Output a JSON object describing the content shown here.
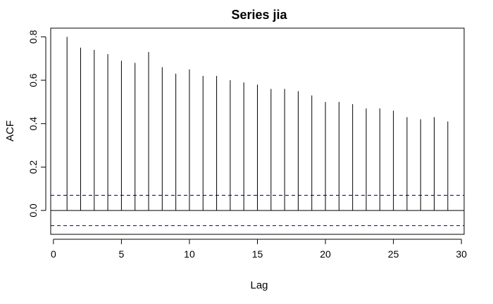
{
  "chart_data": {
    "type": "bar",
    "title": "Series jia",
    "xlabel": "Lag",
    "ylabel": "ACF",
    "xlim": [
      -0.2,
      30.2
    ],
    "ylim": [
      -0.11,
      0.84
    ],
    "x_ticks": [
      0,
      5,
      10,
      15,
      20,
      25,
      30
    ],
    "y_ticks": [
      0.0,
      0.2,
      0.4,
      0.6,
      0.8
    ],
    "x_tick_labels": [
      "0",
      "5",
      "10",
      "15",
      "20",
      "25",
      "30"
    ],
    "y_tick_labels": [
      "0.0",
      "0.2",
      "0.4",
      "0.6",
      "0.8"
    ],
    "lags": [
      1,
      2,
      3,
      4,
      5,
      6,
      7,
      8,
      9,
      10,
      11,
      12,
      13,
      14,
      15,
      16,
      17,
      18,
      19,
      20,
      21,
      22,
      23,
      24,
      25,
      26,
      27,
      28,
      29
    ],
    "values": [
      0.8,
      0.75,
      0.74,
      0.72,
      0.69,
      0.68,
      0.73,
      0.66,
      0.63,
      0.65,
      0.62,
      0.62,
      0.6,
      0.59,
      0.58,
      0.56,
      0.56,
      0.55,
      0.53,
      0.5,
      0.5,
      0.49,
      0.47,
      0.47,
      0.46,
      0.43,
      0.42,
      0.43,
      0.41
    ],
    "confidence_bound": 0.07,
    "grid": false,
    "colors": {
      "bars": "#000000",
      "confidence": "#00008b",
      "frame": "#000000"
    }
  }
}
